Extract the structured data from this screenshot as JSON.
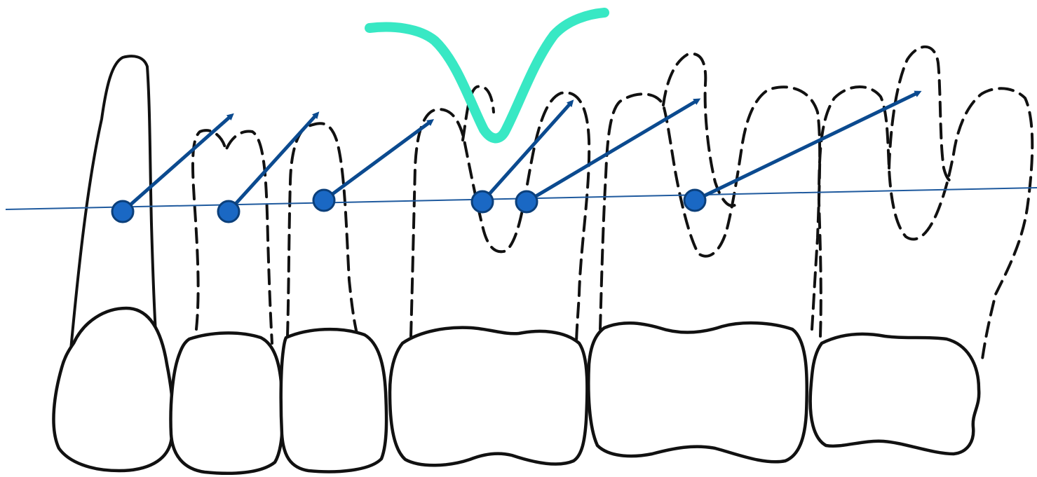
{
  "colors": {
    "background": "#ffffff",
    "outline": "#111111",
    "reference_line": "#1f5a9e",
    "axis_arrow": "#0b4a8f",
    "contact_point_fill": "#1a68c4",
    "contact_point_stroke": "#0b3f7a",
    "curve": "#38e8c4"
  },
  "teeth": [
    {
      "name": "canine",
      "root_style": "solid"
    },
    {
      "name": "first-premolar",
      "root_style": "dashed"
    },
    {
      "name": "second-premolar",
      "root_style": "dashed"
    },
    {
      "name": "first-molar",
      "root_style": "dashed"
    },
    {
      "name": "second-molar",
      "root_style": "dashed"
    },
    {
      "name": "third-molar",
      "root_style": "dashed"
    }
  ],
  "axis_arrow_count": 6,
  "contact_point_count": 6
}
